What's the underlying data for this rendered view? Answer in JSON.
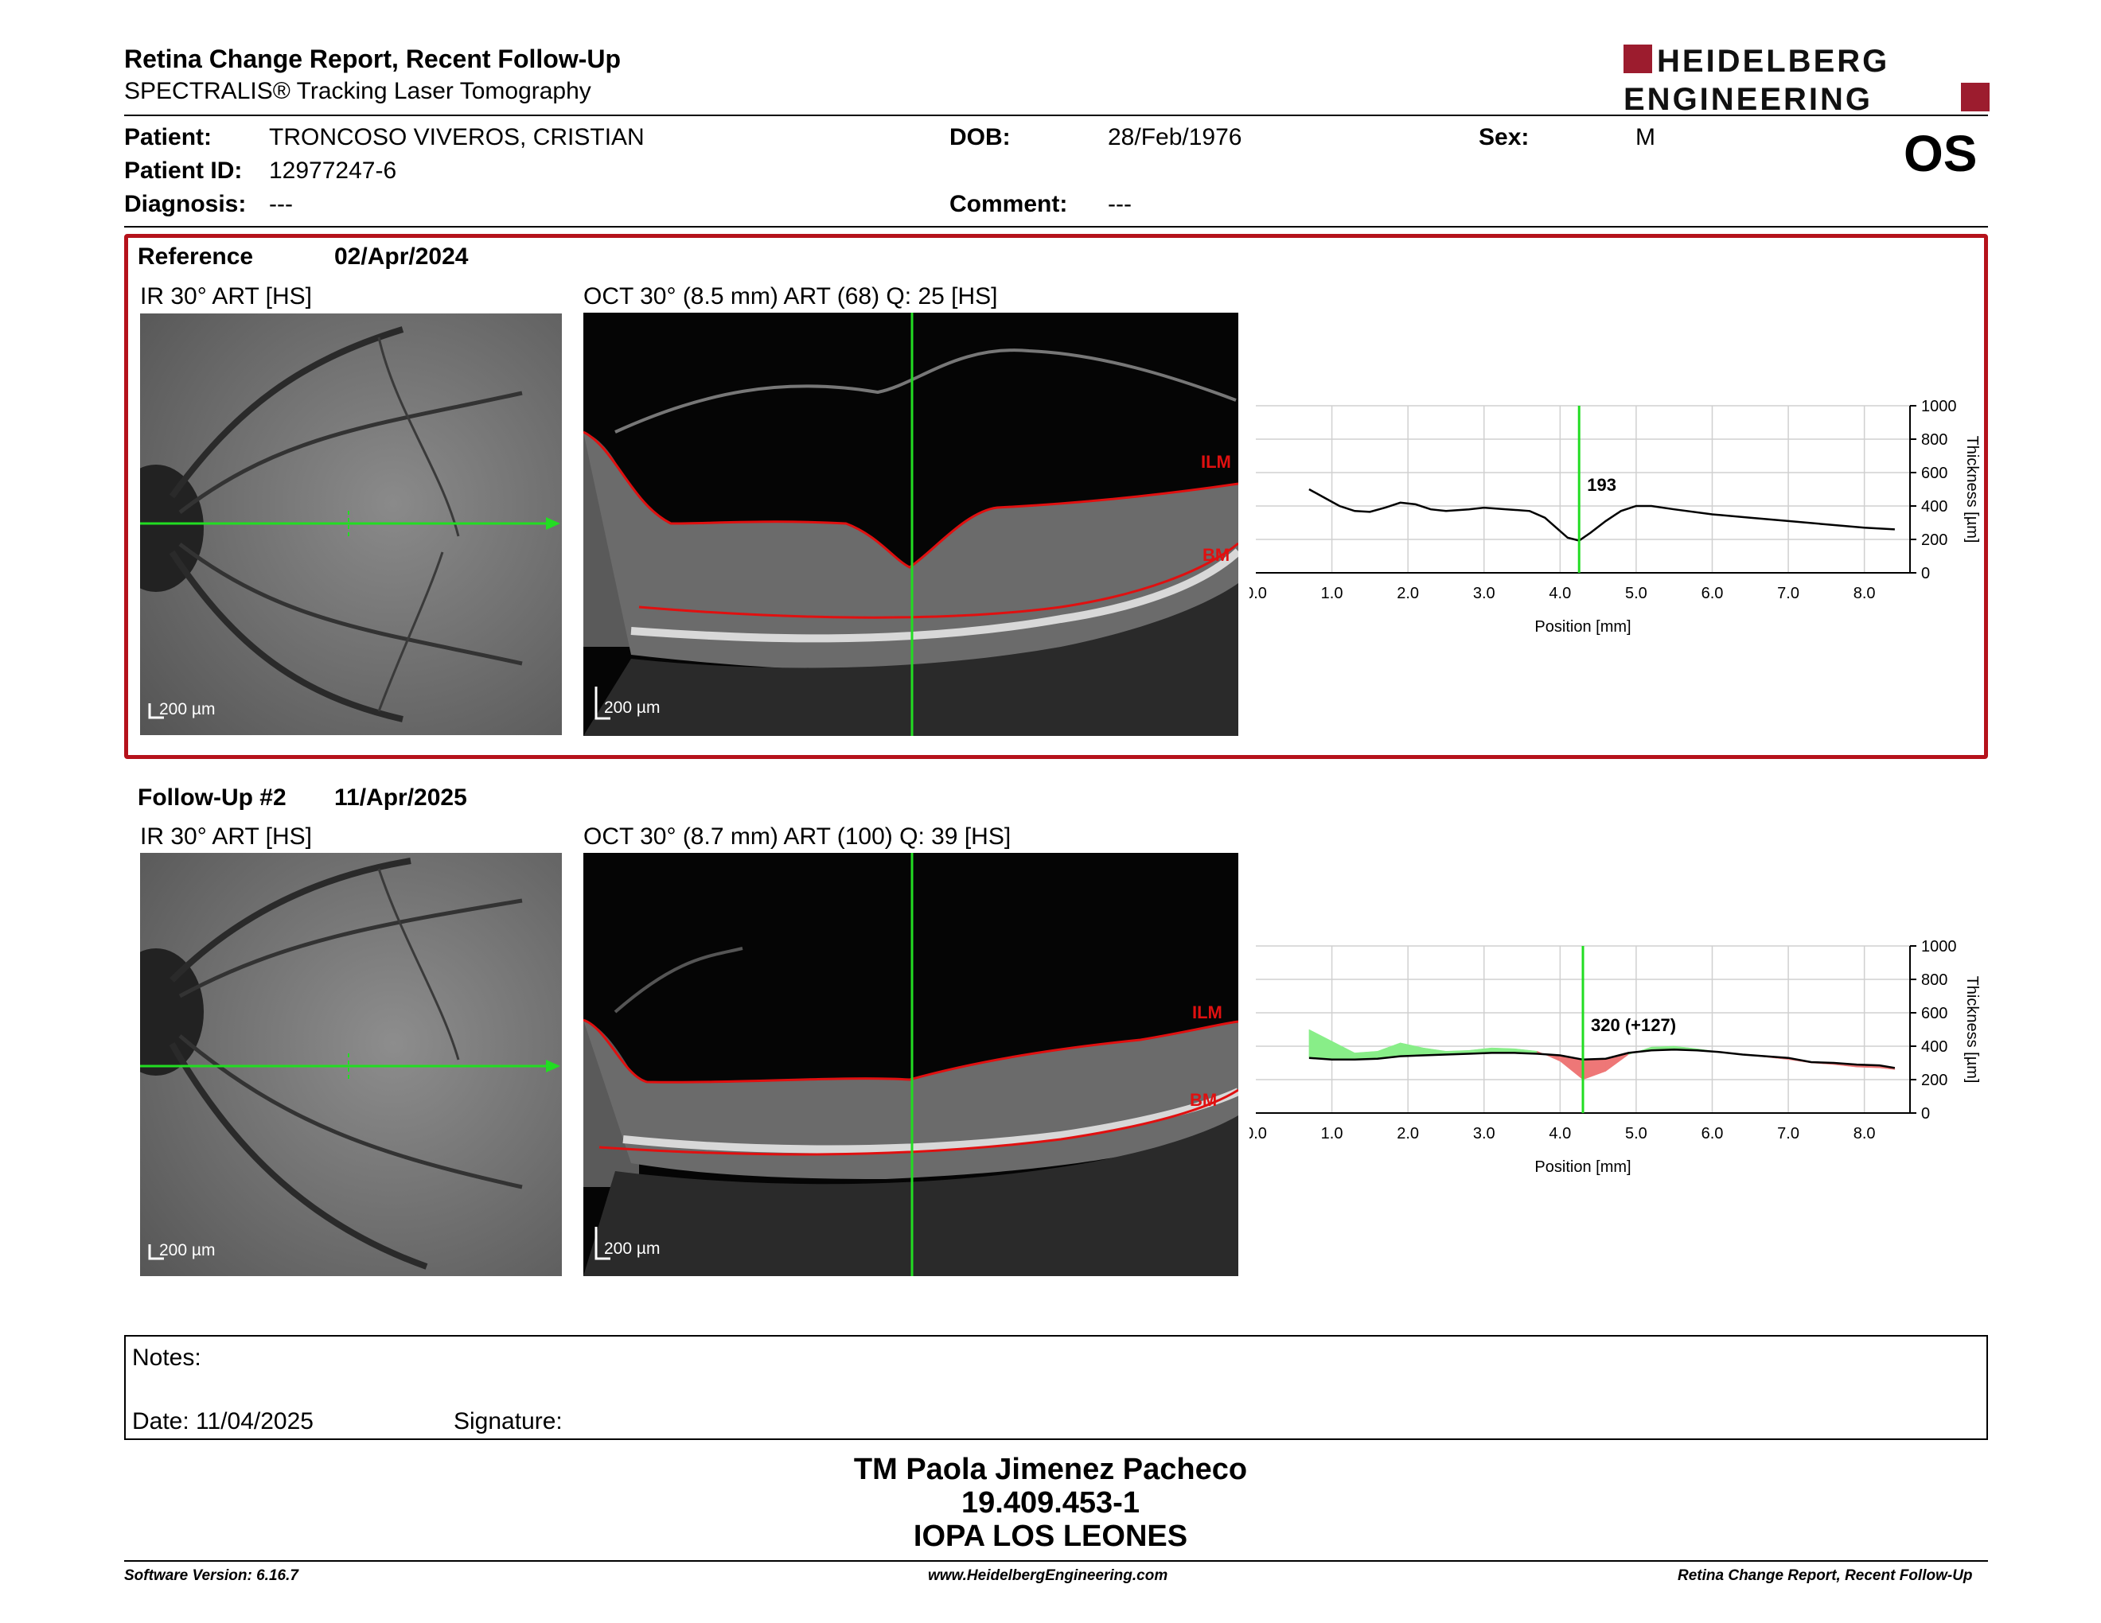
{
  "header": {
    "title": "Retina Change Report, Recent Follow-Up",
    "subtitle": "SPECTRALIS® Tracking Laser Tomography",
    "logo_line1": "HEIDELBERG",
    "logo_line2": "ENGINEERING",
    "eye": "OS"
  },
  "patient": {
    "patient_label": "Patient:",
    "patient_value": "TRONCOSO VIVEROS, CRISTIAN",
    "id_label": "Patient ID:",
    "id_value": "12977247-6",
    "diagnosis_label": "Diagnosis:",
    "diagnosis_value": "---",
    "dob_label": "DOB:",
    "dob_value": "28/Feb/1976",
    "comment_label": "Comment:",
    "comment_value": "---",
    "sex_label": "Sex:",
    "sex_value": "M"
  },
  "reference": {
    "label": "Reference",
    "date": "02/Apr/2024",
    "ir_caption": "IR 30° ART [HS]",
    "oct_caption": "OCT 30° (8.5 mm) ART (68) Q: 25 [HS]",
    "ir_scale": "200 µm",
    "oct_scale": "200 µm",
    "ilm_label": "ILM",
    "bm_label": "BM",
    "marker_value": "193"
  },
  "followup": {
    "label": "Follow-Up #2",
    "date": "11/Apr/2025",
    "ir_caption": "IR 30° ART [HS]",
    "oct_caption": "OCT 30° (8.7 mm) ART (100) Q: 39 [HS]",
    "ir_scale": "200 µm",
    "oct_scale": "200 µm",
    "ilm_label": "ILM",
    "bm_label": "BM",
    "marker_value": "320 (+127)"
  },
  "chart_data": [
    {
      "type": "line",
      "xlabel": "Position [mm]",
      "ylabel": "Thickness [µm]",
      "xlim": [
        0,
        8.6
      ],
      "ylim": [
        0,
        1000
      ],
      "xticks": [
        "0.0",
        "1.0",
        "2.0",
        "3.0",
        "4.0",
        "5.0",
        "6.0",
        "7.0",
        "8.0"
      ],
      "yticks": [
        "0",
        "200",
        "400",
        "600",
        "800",
        "1000"
      ],
      "grid": true,
      "marker_x": 4.25,
      "marker_label": "193",
      "series": [
        {
          "x": [
            0.7,
            0.9,
            1.1,
            1.3,
            1.5,
            1.7,
            1.9,
            2.1,
            2.3,
            2.5,
            2.8,
            3.0,
            3.3,
            3.6,
            3.8,
            3.95,
            4.1,
            4.25,
            4.4,
            4.6,
            4.8,
            5.0,
            5.2,
            5.5,
            6.0,
            6.5,
            7.0,
            7.5,
            8.0,
            8.4
          ],
          "y": [
            500,
            450,
            400,
            370,
            365,
            390,
            420,
            410,
            380,
            370,
            380,
            390,
            380,
            370,
            330,
            270,
            210,
            193,
            240,
            310,
            370,
            400,
            400,
            380,
            350,
            330,
            310,
            290,
            270,
            260
          ]
        }
      ]
    },
    {
      "type": "line",
      "xlabel": "Position [mm]",
      "ylabel": "Thickness [µm]",
      "xlim": [
        0,
        8.6
      ],
      "ylim": [
        0,
        1000
      ],
      "xticks": [
        "0.0",
        "1.0",
        "2.0",
        "3.0",
        "4.0",
        "5.0",
        "6.0",
        "7.0",
        "8.0"
      ],
      "yticks": [
        "0",
        "200",
        "400",
        "600",
        "800",
        "1000"
      ],
      "grid": true,
      "marker_x": 4.3,
      "marker_label": "320 (+127)",
      "series": [
        {
          "x": [
            0.7,
            1.0,
            1.3,
            1.6,
            1.9,
            2.2,
            2.5,
            2.8,
            3.1,
            3.4,
            3.7,
            4.0,
            4.3,
            4.6,
            4.9,
            5.2,
            5.5,
            5.8,
            6.1,
            6.4,
            6.7,
            7.0,
            7.3,
            7.6,
            7.9,
            8.2,
            8.4
          ],
          "y": [
            330,
            320,
            320,
            325,
            340,
            345,
            350,
            355,
            360,
            360,
            355,
            345,
            320,
            325,
            360,
            375,
            380,
            375,
            365,
            350,
            340,
            330,
            305,
            300,
            290,
            285,
            270
          ]
        },
        {
          "x": [
            0.7,
            1.0,
            1.3,
            1.6,
            1.9,
            2.2,
            2.5,
            2.8,
            3.1,
            3.4,
            3.7,
            4.0,
            4.3,
            4.6,
            4.9,
            5.2,
            5.5,
            5.8,
            6.1,
            6.4,
            6.7,
            7.0,
            7.3,
            7.6,
            7.9,
            8.2,
            8.4
          ],
          "y": [
            500,
            430,
            360,
            370,
            420,
            390,
            370,
            375,
            390,
            385,
            370,
            310,
            200,
            250,
            350,
            395,
            400,
            385,
            365,
            350,
            335,
            320,
            300,
            290,
            275,
            270,
            260
          ]
        }
      ]
    }
  ],
  "notes": {
    "notes_label": "Notes:",
    "date_label": "Date: 11/04/2025",
    "signature_label": "Signature:"
  },
  "signature": {
    "name": "TM Paola Jimenez Pacheco",
    "id": "19.409.453-1",
    "org": "IOPA LOS LEONES"
  },
  "footer": {
    "software": "Software Version: 6.16.7",
    "website": "www.HeidelbergEngineering.com",
    "report": "Retina Change Report, Recent Follow-Up"
  },
  "colors": {
    "brand": "#9c1c2e",
    "ref_border": "#b5121b",
    "scan_line": "#22dd22",
    "segmentation": "#e01010",
    "gain": "#88ee88",
    "loss": "#ee7777"
  }
}
